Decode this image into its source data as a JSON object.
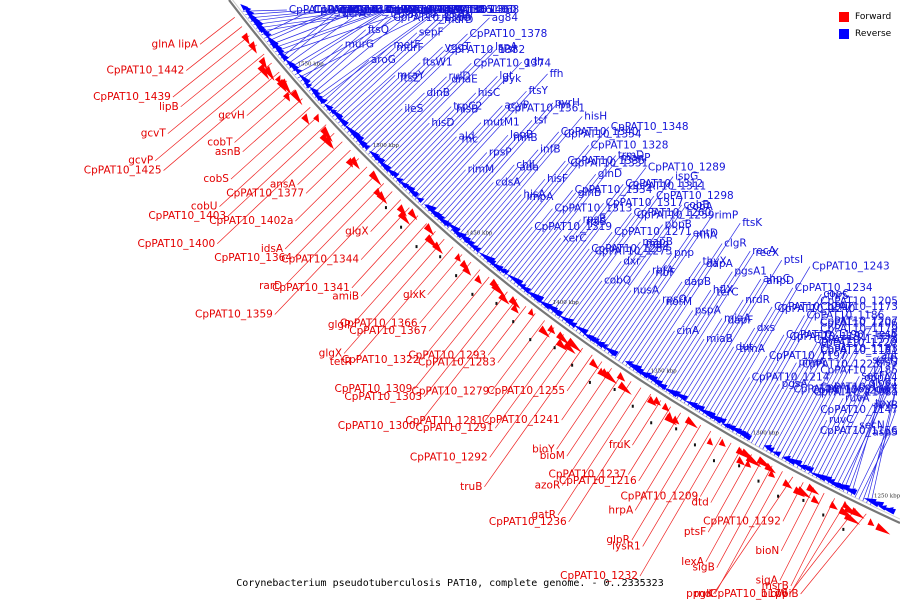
{
  "caption": "Corynebacterium pseudotuberculosis PAT10, complete genome. - 0..2335323",
  "legend": [
    {
      "label": "Forward",
      "color": "#ff0000"
    },
    {
      "label": "Reverse",
      "color": "#0000ff"
    }
  ],
  "colors": {
    "forward": "#ff0000",
    "reverse": "#0000ff",
    "backbone": "#888888"
  },
  "scale_ticks": [
    "1550 kbp",
    "1500 kbp",
    "1450 kbp",
    "1400 kbp",
    "1350 kbp",
    "1300 kbp",
    "1250 kbp"
  ],
  "forward_labels": [
    "glnA lipA",
    "CpPAT10_1442",
    "CpPAT10_1439",
    "lipB",
    "gcvT",
    "gcvP",
    "CpPAT10_1425",
    "gcvH",
    "cobT",
    "asnB",
    "cobS",
    "cobU",
    "CpPAT10_1403",
    "CpPAT10_1400",
    "ansA",
    "CpPAT10_1377",
    "CpPAT10_1402a",
    "idsA",
    "CpPAT10_1364",
    "rarD",
    "CpPAT10_1359",
    "glgX",
    "CpPAT10_1344",
    "CpPAT10_1341",
    "amiB",
    "glgP",
    "glgX",
    "tetR",
    "glxK",
    "CpPAT10_1366",
    "CpPAT10_1367",
    "CpPAT10_1322",
    "CpPAT10_1309",
    "CpPAT10_1303",
    "CpPAT10_1300",
    "CpPAT10_1293",
    "CpPAT10_1283",
    "CpPAT10_1279",
    "CpPAT10_1281",
    "CpPAT10_1291",
    "CpPAT10_1292",
    "truB",
    "CpPAT10_1255",
    "CpPAT10_1241",
    "bioY",
    "bioM",
    "azoR",
    "gatR",
    "CpPAT10_1236",
    "fruK",
    "CpPAT10_1237",
    "CpPAT10_1216",
    "hrpA",
    "glpR",
    "lysR1",
    "CpPAT10_1232",
    "CpPAT10_1209",
    "dtd",
    "ptsF",
    "lexA",
    "sigB",
    "ppgK",
    "rnd",
    "CpPAT10_1192",
    "bioN",
    "sigA",
    "msrB",
    "CpPAT10_1176",
    "bioW",
    "ppiB"
  ],
  "reverse_labels": [
    "CpPAT10_1446",
    "CpPAT10_1431",
    "CpPAT10_1416a",
    "ctaE",
    "ilvE",
    "CpPAT10_1424",
    "ctaF",
    "CpPAT10_1410",
    "ctaC",
    "qcrB",
    "pimB",
    "CpPAT10_1411",
    "CpPAT10_1397",
    "murE",
    "qcrC",
    "qcrA",
    "glk",
    "mraZ",
    "murC",
    "CpPAT10_1386",
    "CpPAT10_1401",
    "murG",
    "ftsQ",
    "CpPAT10_1370",
    "CpPAT10_1369",
    "CpPAT10_1355",
    "CpPAT10_1360",
    "CpPAT10_1368",
    "aroG",
    "metF",
    "murF",
    "sepF",
    "mraW",
    "murD",
    "ftsL",
    "mraY",
    "ftsZ",
    "ftsW1",
    "yggT",
    "CpPAT10_1382",
    "CpPAT10_1378",
    "ag84",
    "ileS",
    "dinB",
    "rulD",
    "dnaE",
    "CpPAT10_1374",
    "lspA",
    "hisI",
    "hisD",
    "trpC2",
    "hisB",
    "hisC",
    "lgt",
    "pyk",
    "gdh",
    "ald",
    "rnc",
    "mutM1",
    "acyP",
    "CpPAT10_1361",
    "ftsY",
    "ffh",
    "rimM",
    "rpsP",
    "lepB",
    "rnhB",
    "tsf",
    "pyrH",
    "frr",
    "cdsA",
    "chlI",
    "ada",
    "infB",
    "CpPAT10_1340",
    "CpPAT10_1354",
    "hisH",
    "hisA",
    "impA",
    "hisF",
    "CpPAT10_1335",
    "CpPAT10_1331",
    "CpPAT10_1328",
    "CpPAT10_1348",
    "CpPAT10_1319",
    "CpPAT10_1313",
    "CpPAT10_1334",
    "glnB",
    "glnD",
    "trmD",
    "manP",
    "xerC",
    "rpsB",
    "rplS",
    "CpPAT10_1317",
    "CpPAT10_1312",
    "CpPAT10_1311",
    "CpPAT10_1289",
    "CpPAT10_1284",
    "CpPAT10_1273",
    "CpPAT10_1271",
    "CpPAT10_1260",
    "CpPAT10_1259",
    "CpPAT10_1298",
    "ispG",
    "cobQ",
    "dxr",
    "mapB",
    "mqo",
    "pbpB",
    "cobB",
    "cobA",
    "nusA",
    "rbfA",
    "ribF",
    "pnp",
    "entD",
    "rihA",
    "rimP",
    "rpsO",
    "norM",
    "dapB",
    "thyX",
    "dapA",
    "clgR",
    "ftsK",
    "cinA",
    "pspA",
    "hflX",
    "terC",
    "pgsA1",
    "recA",
    "recX",
    "miaB",
    "miaA",
    "dapF",
    "nrdR",
    "ahpC",
    "ahpD",
    "ptsI",
    "dut",
    "trmA",
    "dxs",
    "CpPAT10_1247",
    "CpPAT10_1240",
    "CpPAT10_1234",
    "CpPAT10_1243",
    "CpPAT10_1214",
    "CpPAT10_1197",
    "CpPAT10_1196",
    "CpPAT10_1191",
    "CpPAT10_1186",
    "copC",
    "thrS",
    "pgsA",
    "pimA",
    "CpPAT10_1223",
    "CpPAT10_1220",
    "CpPAT10_1207",
    "CpPAT10_1206",
    "CpPAT10_1205",
    "CpPAT10_1200",
    "CpPAT10_1198a",
    "CpPAT10_1185",
    "CpPAT10_1183",
    "CpPAT10_1181",
    "CpPAT10_1179",
    "CpPAT10_1173",
    "ruvC",
    "ruvA",
    "secF",
    "oppA4",
    "apt",
    "tesB",
    "relA",
    "secN",
    "tpx",
    "ruvB",
    "glob1",
    "secD",
    "hisS",
    "CpPAT10_1157a",
    "CpPAT10_1156",
    "aspS",
    "CpPAT10_1147",
    "CpPAT10_1174",
    "CpPAT10_1369 glgX"
  ]
}
